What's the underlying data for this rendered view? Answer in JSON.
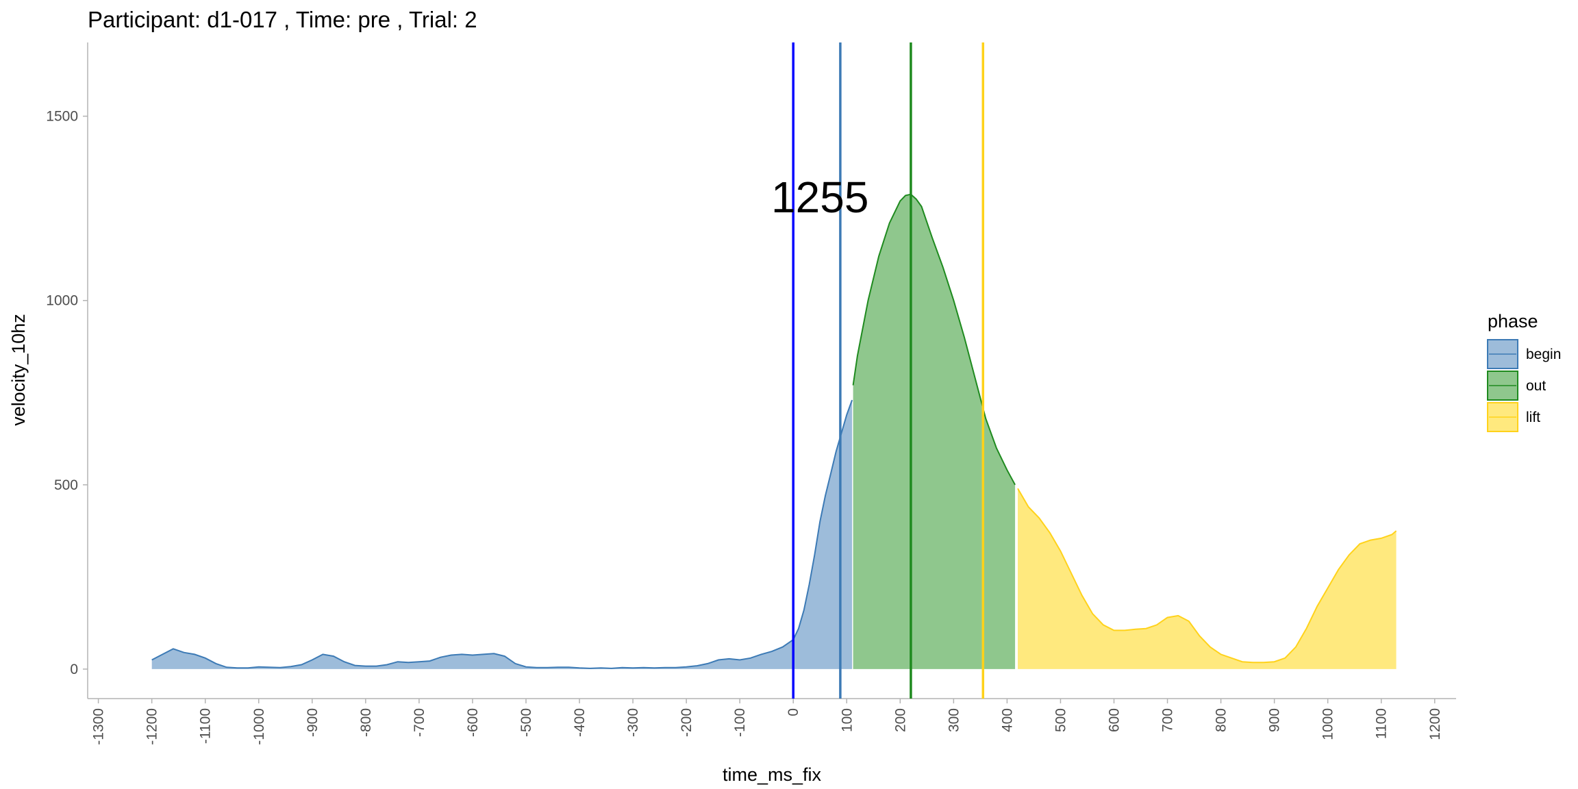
{
  "chart_data": {
    "type": "area",
    "title": "Participant:  d1-017 , Time: pre , Trial:  2",
    "xlabel": "time_ms_fix",
    "ylabel": "velocity_10hz",
    "xlim": [
      -1320,
      1240
    ],
    "ylim": [
      -80,
      1700
    ],
    "x_ticks": [
      -1300,
      -1200,
      -1100,
      -1000,
      -900,
      -800,
      -700,
      -600,
      -500,
      -400,
      -300,
      -200,
      -100,
      0,
      100,
      200,
      300,
      400,
      500,
      600,
      700,
      800,
      900,
      1000,
      1100,
      1200
    ],
    "x_tick_labels": [
      "-1300",
      "-1200",
      "-1100",
      "-1000",
      "-900",
      "-800",
      "-700",
      "-600",
      "-500",
      "-400",
      "-300",
      "-200",
      "-100",
      "0",
      "100",
      "200",
      "300",
      "400",
      "500",
      "600",
      "700",
      "800",
      "900",
      "1000",
      "1100",
      "1200"
    ],
    "y_ticks": [
      0,
      500,
      1000,
      1500
    ],
    "y_tick_labels": [
      "0",
      "500",
      "1000",
      "1500"
    ],
    "grid": false,
    "legend": {
      "title": "phase",
      "position": "right",
      "entries": [
        {
          "label": "begin",
          "fill": "#9dbcda",
          "stroke": "#3c7ab5"
        },
        {
          "label": "out",
          "fill": "#8fc78d",
          "stroke": "#1e8a1e"
        },
        {
          "label": "lift",
          "fill": "#ffe97e",
          "stroke": "#ffd21a"
        }
      ]
    },
    "series": [
      {
        "name": "begin",
        "x": [
          -1200,
          -1180,
          -1160,
          -1140,
          -1120,
          -1100,
          -1080,
          -1060,
          -1040,
          -1020,
          -1000,
          -980,
          -960,
          -940,
          -920,
          -900,
          -880,
          -860,
          -840,
          -820,
          -800,
          -780,
          -760,
          -740,
          -720,
          -700,
          -680,
          -660,
          -640,
          -620,
          -600,
          -580,
          -560,
          -540,
          -520,
          -500,
          -480,
          -460,
          -440,
          -420,
          -400,
          -380,
          -360,
          -340,
          -320,
          -300,
          -280,
          -260,
          -240,
          -220,
          -200,
          -180,
          -160,
          -140,
          -120,
          -100,
          -80,
          -60,
          -40,
          -20,
          0,
          10,
          20,
          30,
          40,
          50,
          60,
          70,
          80,
          90,
          100,
          110
        ],
        "y": [
          25,
          40,
          55,
          45,
          40,
          30,
          15,
          5,
          3,
          3,
          6,
          5,
          4,
          7,
          12,
          25,
          40,
          35,
          20,
          10,
          8,
          8,
          12,
          20,
          18,
          20,
          22,
          32,
          38,
          40,
          38,
          40,
          42,
          35,
          15,
          6,
          4,
          4,
          5,
          5,
          3,
          2,
          3,
          2,
          4,
          3,
          4,
          3,
          4,
          4,
          6,
          9,
          15,
          25,
          28,
          25,
          30,
          40,
          48,
          60,
          80,
          110,
          160,
          230,
          310,
          400,
          470,
          530,
          590,
          640,
          690,
          730
        ]
      },
      {
        "name": "out",
        "x": [
          112,
          120,
          140,
          160,
          180,
          200,
          210,
          220,
          230,
          240,
          260,
          280,
          300,
          320,
          340,
          360,
          380,
          400,
          415
        ],
        "y": [
          770,
          850,
          1000,
          1120,
          1210,
          1270,
          1285,
          1288,
          1275,
          1255,
          1170,
          1090,
          1000,
          900,
          790,
          680,
          600,
          540,
          500
        ]
      },
      {
        "name": "lift",
        "x": [
          420,
          440,
          460,
          480,
          500,
          520,
          540,
          560,
          580,
          600,
          620,
          640,
          660,
          680,
          700,
          720,
          740,
          760,
          780,
          800,
          820,
          840,
          860,
          880,
          900,
          920,
          940,
          960,
          980,
          1000,
          1020,
          1040,
          1060,
          1080,
          1100,
          1120,
          1128
        ],
        "y": [
          490,
          440,
          410,
          370,
          320,
          260,
          200,
          150,
          120,
          105,
          105,
          108,
          110,
          120,
          140,
          145,
          130,
          90,
          60,
          40,
          30,
          20,
          18,
          18,
          20,
          30,
          60,
          110,
          170,
          220,
          270,
          310,
          340,
          350,
          355,
          365,
          375
        ]
      }
    ],
    "vlines": [
      {
        "x": 0,
        "color": "#0000ff"
      },
      {
        "x": 88,
        "color": "#3c7ab5"
      },
      {
        "x": 220,
        "color": "#1e8a1e"
      },
      {
        "x": 355,
        "color": "#ffd21a"
      }
    ],
    "annotations": [
      {
        "text": "1255",
        "x": 50,
        "y": 1280
      }
    ]
  }
}
